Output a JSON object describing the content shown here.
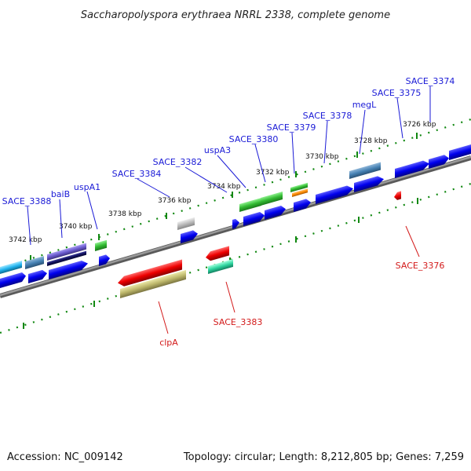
{
  "title": "Saccharopolyspora erythraea NRRL 2338, complete genome",
  "footer": {
    "accession": "Accession: NC_009142",
    "summary": "Topology: circular; Length: 8,212,805 bp; Genes: 7,259"
  },
  "ruler_labels": [
    "3742 kbp",
    "3740 kbp",
    "3738 kbp",
    "3736 kbp",
    "3734 kbp",
    "3732 kbp",
    "3730 kbp",
    "3728 kbp",
    "3726 kbp"
  ],
  "gene_labels_top": [
    "SACE_3388",
    "baiB",
    "uspA1",
    "SACE_3384",
    "SACE_3382",
    "uspA3",
    "SACE_3380",
    "SACE_3379",
    "SACE_3378",
    "megL",
    "SACE_3375",
    "SACE_3374"
  ],
  "gene_labels_bottom": [
    "clpA",
    "SACE_3383",
    "SACE_3376"
  ],
  "colors": {
    "cds_forward": "#0000ee",
    "cds_reverse": "#ee0000",
    "backbone": "#777777",
    "ruler_tick": "#118811",
    "label_blue": "#1a1ad6",
    "label_red": "#d31a1a"
  }
}
